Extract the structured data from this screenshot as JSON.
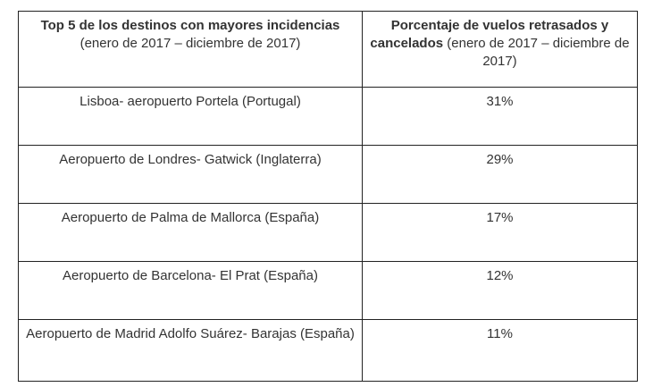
{
  "table": {
    "headers": [
      {
        "bold": "Top 5 de los destinos con mayores incidencias",
        "normal": " (enero de 2017 – diciembre de 2017)"
      },
      {
        "bold": "Porcentaje de vuelos retrasados y cancelados",
        "normal": " (enero de 2017 – diciembre de 2017)"
      }
    ],
    "rows": [
      {
        "destination": "Lisboa- aeropuerto Portela (Portugal)",
        "percentage": "31%"
      },
      {
        "destination": "Aeropuerto de Londres- Gatwick  (Inglaterra)",
        "percentage": "29%"
      },
      {
        "destination": "Aeropuerto de Palma de Mallorca (España)",
        "percentage": "17%"
      },
      {
        "destination": "Aeropuerto de Barcelona- El Prat (España)",
        "percentage": "12%"
      },
      {
        "destination": "Aeropuerto de Madrid Adolfo Suárez- Barajas (España)",
        "percentage": "11%"
      }
    ]
  }
}
